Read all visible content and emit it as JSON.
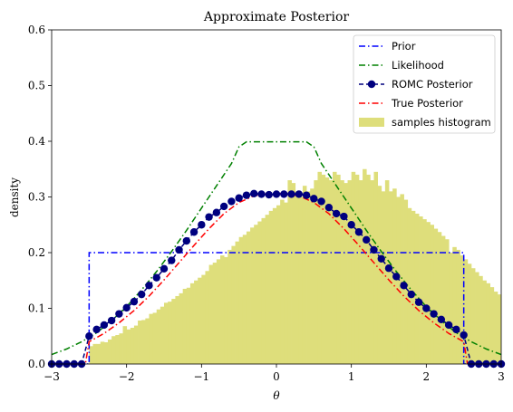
{
  "chart_data": {
    "type": "line",
    "title": "Approximate Posterior",
    "xlabel": "θ",
    "ylabel": "density",
    "xlim": [
      -3,
      3
    ],
    "ylim": [
      0,
      0.6
    ],
    "xticks": [
      -3,
      -2,
      -1,
      0,
      1,
      2,
      3
    ],
    "xtick_labels": [
      "−3",
      "−2",
      "−1",
      "0",
      "1",
      "2",
      "3"
    ],
    "yticks": [
      0.0,
      0.1,
      0.2,
      0.3,
      0.4,
      0.5,
      0.6
    ],
    "ytick_labels": [
      "0.0",
      "0.1",
      "0.2",
      "0.3",
      "0.4",
      "0.5",
      "0.6"
    ],
    "grid": false,
    "legend_position": "top-right",
    "legend": [
      "Prior",
      "Likelihood",
      "ROMC Posterior",
      "True Posterior",
      "samples histogram"
    ],
    "colors": {
      "prior": "#0000ff",
      "likelihood": "#008000",
      "romc": "#00007f",
      "true_posterior": "#ff0000",
      "histogram": "#dede7b"
    },
    "series": [
      {
        "name": "Prior",
        "style": "dashdot",
        "x": [
          -3.0,
          -2.5,
          -2.5,
          2.5,
          2.5,
          3.0
        ],
        "y": [
          0.0,
          0.0,
          0.2,
          0.2,
          0.0,
          0.0
        ]
      },
      {
        "name": "Likelihood",
        "style": "dashdot",
        "x": [
          -3.0,
          -2.8,
          -2.6,
          -2.4,
          -2.2,
          -2.0,
          -1.8,
          -1.6,
          -1.4,
          -1.2,
          -1.0,
          -0.8,
          -0.6,
          -0.5,
          -0.4,
          0.0,
          0.4,
          0.5,
          0.6,
          0.8,
          1.0,
          1.2,
          1.4,
          1.6,
          1.8,
          2.0,
          2.2,
          2.4,
          2.6,
          2.8,
          3.0
        ],
        "y": [
          0.017,
          0.027,
          0.04,
          0.056,
          0.078,
          0.103,
          0.133,
          0.166,
          0.202,
          0.24,
          0.28,
          0.32,
          0.36,
          0.39,
          0.399,
          0.399,
          0.399,
          0.39,
          0.36,
          0.32,
          0.28,
          0.24,
          0.202,
          0.166,
          0.133,
          0.103,
          0.078,
          0.056,
          0.04,
          0.027,
          0.017
        ]
      },
      {
        "name": "ROMC Posterior",
        "style": "dashed-markers",
        "x": [
          -3.0,
          -2.9,
          -2.8,
          -2.7,
          -2.6,
          -2.5,
          -2.4,
          -2.3,
          -2.2,
          -2.1,
          -2.0,
          -1.9,
          -1.8,
          -1.7,
          -1.6,
          -1.5,
          -1.4,
          -1.3,
          -1.2,
          -1.1,
          -1.0,
          -0.9,
          -0.8,
          -0.7,
          -0.6,
          -0.5,
          -0.4,
          -0.3,
          -0.2,
          -0.1,
          0.0,
          0.1,
          0.2,
          0.3,
          0.4,
          0.5,
          0.6,
          0.7,
          0.8,
          0.9,
          1.0,
          1.1,
          1.2,
          1.3,
          1.4,
          1.5,
          1.6,
          1.7,
          1.8,
          1.9,
          2.0,
          2.1,
          2.2,
          2.3,
          2.4,
          2.5,
          2.6,
          2.7,
          2.8,
          2.9,
          3.0
        ],
        "y": [
          0.0,
          0.0,
          0.0,
          0.0,
          0.0,
          0.05,
          0.062,
          0.07,
          0.078,
          0.09,
          0.101,
          0.112,
          0.125,
          0.141,
          0.155,
          0.171,
          0.186,
          0.205,
          0.221,
          0.237,
          0.25,
          0.264,
          0.272,
          0.283,
          0.292,
          0.298,
          0.303,
          0.306,
          0.305,
          0.304,
          0.305,
          0.305,
          0.305,
          0.305,
          0.303,
          0.297,
          0.292,
          0.281,
          0.27,
          0.265,
          0.25,
          0.237,
          0.223,
          0.205,
          0.189,
          0.172,
          0.157,
          0.141,
          0.125,
          0.111,
          0.1,
          0.09,
          0.08,
          0.07,
          0.062,
          0.052,
          0.0,
          0.0,
          0.0,
          0.0,
          0.0
        ]
      },
      {
        "name": "True Posterior",
        "style": "dashdot",
        "x": [
          -3.0,
          -2.55,
          -2.5,
          -2.3,
          -2.1,
          -1.9,
          -1.7,
          -1.5,
          -1.3,
          -1.1,
          -0.9,
          -0.7,
          -0.5,
          -0.3,
          -0.1,
          0.1,
          0.3,
          0.5,
          0.7,
          0.9,
          1.1,
          1.3,
          1.5,
          1.7,
          1.9,
          2.1,
          2.3,
          2.5,
          2.55,
          3.0
        ],
        "y": [
          0.0,
          0.0,
          0.04,
          0.055,
          0.074,
          0.096,
          0.122,
          0.151,
          0.182,
          0.213,
          0.243,
          0.27,
          0.29,
          0.302,
          0.306,
          0.306,
          0.302,
          0.29,
          0.27,
          0.243,
          0.213,
          0.182,
          0.151,
          0.122,
          0.096,
          0.074,
          0.055,
          0.04,
          0.0,
          0.0
        ]
      }
    ],
    "histogram": {
      "name": "samples histogram",
      "bin_edges_start": -2.5,
      "bin_width": 0.05,
      "values": [
        0.032,
        0.036,
        0.036,
        0.04,
        0.039,
        0.044,
        0.05,
        0.052,
        0.055,
        0.068,
        0.062,
        0.065,
        0.069,
        0.078,
        0.079,
        0.082,
        0.09,
        0.092,
        0.098,
        0.103,
        0.11,
        0.112,
        0.117,
        0.122,
        0.127,
        0.135,
        0.137,
        0.145,
        0.15,
        0.155,
        0.16,
        0.167,
        0.178,
        0.182,
        0.188,
        0.195,
        0.192,
        0.205,
        0.212,
        0.22,
        0.228,
        0.232,
        0.238,
        0.245,
        0.25,
        0.256,
        0.262,
        0.268,
        0.275,
        0.28,
        0.285,
        0.295,
        0.29,
        0.33,
        0.325,
        0.31,
        0.3,
        0.32,
        0.31,
        0.315,
        0.33,
        0.345,
        0.34,
        0.335,
        0.33,
        0.345,
        0.34,
        0.33,
        0.325,
        0.33,
        0.345,
        0.34,
        0.33,
        0.35,
        0.34,
        0.33,
        0.345,
        0.32,
        0.31,
        0.33,
        0.31,
        0.315,
        0.3,
        0.305,
        0.295,
        0.28,
        0.275,
        0.27,
        0.265,
        0.26,
        0.255,
        0.25,
        0.243,
        0.237,
        0.23,
        0.224,
        0.2,
        0.21,
        0.205,
        0.195,
        0.188,
        0.18,
        0.172,
        0.165,
        0.158,
        0.15,
        0.145,
        0.138,
        0.13,
        0.125,
        0.118,
        0.11,
        0.105,
        0.1,
        0.095,
        0.09,
        0.082,
        0.078,
        0.072,
        0.067,
        0.062,
        0.058,
        0.055,
        0.05,
        0.045,
        0.042,
        0.04,
        0.038,
        0.036,
        0.033,
        0.032,
        0.03
      ]
    }
  }
}
